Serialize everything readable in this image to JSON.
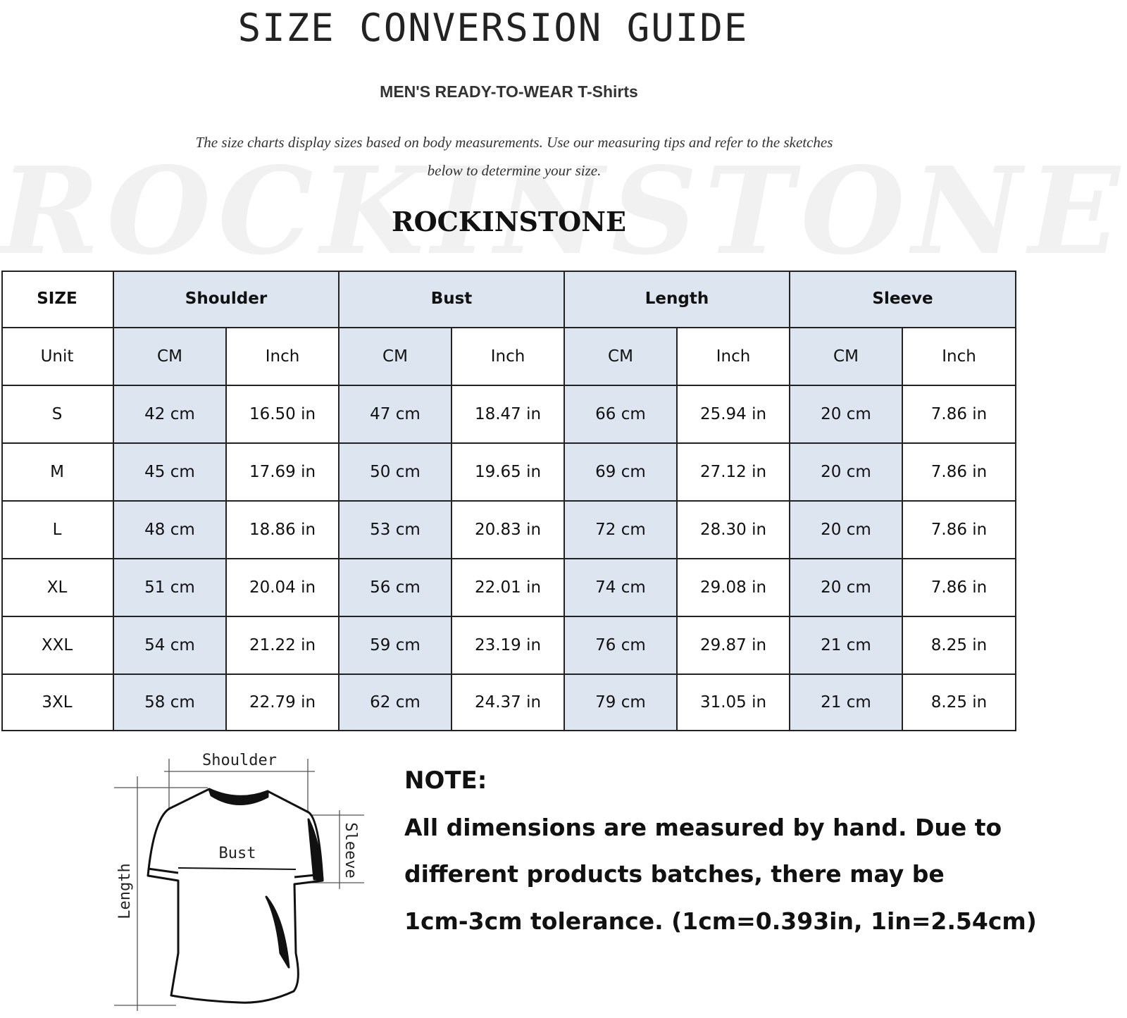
{
  "header": {
    "title": "SIZE CONVERSION GUIDE",
    "subtitle": "MEN'S READY-TO-WEAR T-Shirts",
    "intro_line1": "The size charts display sizes based on body measurements. Use our measuring tips and refer to the sketches",
    "intro_line2": "below to determine your size.",
    "brand": "ROCKINSTONE",
    "watermark": "ROCKINSTONE"
  },
  "table": {
    "size_label": "SIZE",
    "unit_label": "Unit",
    "groups": [
      "Shoulder",
      "Bust",
      "Length",
      "Sleeve"
    ],
    "units": [
      "CM",
      "Inch",
      "CM",
      "Inch",
      "CM",
      "Inch",
      "CM",
      "Inch"
    ],
    "rows": [
      {
        "size": "S",
        "values": [
          "42 cm",
          "16.50 in",
          "47 cm",
          "18.47  in",
          "66 cm",
          "25.94  in",
          "20 cm",
          "7.86  in"
        ]
      },
      {
        "size": "M",
        "values": [
          "45 cm",
          "17.69  in",
          "50 cm",
          "19.65  in",
          "69 cm",
          "27.12  in",
          "20 cm",
          "7.86  in"
        ]
      },
      {
        "size": "L",
        "values": [
          "48 cm",
          "18.86  in",
          "53 cm",
          "20.83  in",
          "72 cm",
          "28.30  in",
          "20 cm",
          "7.86  in"
        ]
      },
      {
        "size": "XL",
        "values": [
          "51 cm",
          "20.04  in",
          "56 cm",
          "22.01  in",
          "74 cm",
          "29.08  in",
          "20 cm",
          "7.86  in"
        ]
      },
      {
        "size": "XXL",
        "values": [
          "54 cm",
          "21.22  in",
          "59 cm",
          "23.19  in",
          "76 cm",
          "29.87  in",
          "21 cm",
          "8.25  in"
        ]
      },
      {
        "size": "3XL",
        "values": [
          "58 cm",
          "22.79  in",
          "62 cm",
          "24.37  in",
          "79 cm",
          "31.05  in",
          "21 cm",
          "8.25  in"
        ]
      }
    ],
    "highlight_color": "#dde6f0"
  },
  "sketch": {
    "shoulder": "Shoulder",
    "bust": "Bust",
    "length": "Length",
    "sleeve": "Sleeve"
  },
  "note": {
    "title": "NOTE:",
    "lines": [
      "All dimensions are measured by hand. Due to",
      "different products batches, there may be",
      "1cm-3cm tolerance. (1cm=0.393in, 1in=2.54cm)"
    ]
  }
}
